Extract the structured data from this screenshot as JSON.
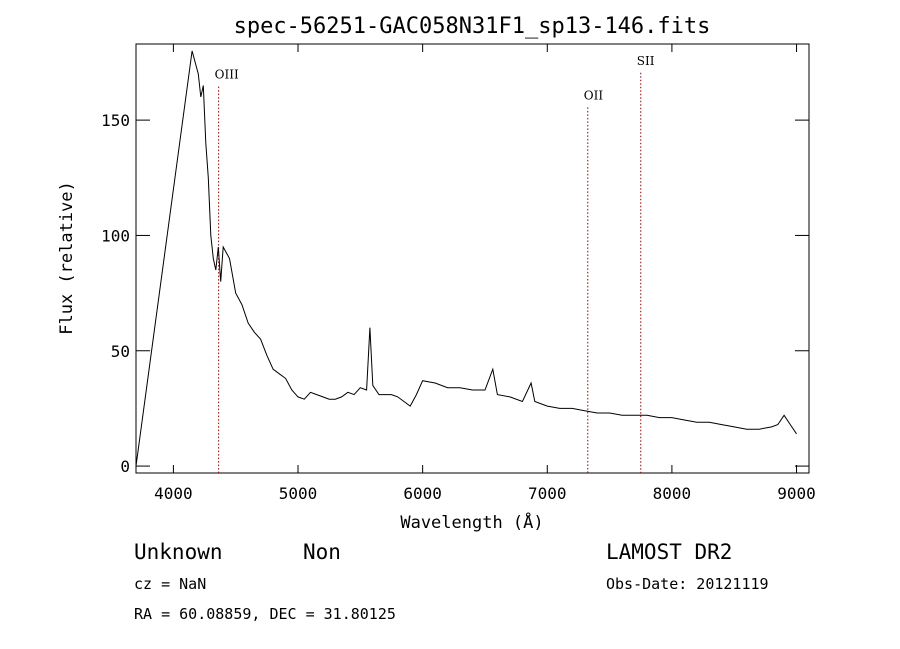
{
  "chart_data": {
    "type": "line",
    "title": "spec-56251-GAC058N31F1_sp13-146.fits",
    "xlabel": "Wavelength (Å)",
    "ylabel": "Flux (relative)",
    "xlim": [
      3700,
      9100
    ],
    "ylim": [
      -3,
      183
    ],
    "xticks": [
      4000,
      5000,
      6000,
      7000,
      8000,
      9000
    ],
    "xtick_labels": [
      "4000",
      "5000",
      "6000",
      "7000",
      "8000",
      "9000"
    ],
    "yticks": [
      0,
      50,
      100,
      150
    ],
    "ytick_labels": [
      "0",
      "50",
      "100",
      "150"
    ],
    "grid": false,
    "series": [
      {
        "x": [
          3700,
          4150,
          4200,
          4220,
          4240,
          4260,
          4280,
          4300,
          4320,
          4340,
          4360,
          4380,
          4400,
          4450,
          4500,
          4550,
          4600,
          4650,
          4700,
          4750,
          4800,
          4850,
          4900,
          4950,
          5000,
          5050,
          5100,
          5150,
          5200,
          5250,
          5300,
          5350,
          5400,
          5450,
          5500,
          5550,
          5577,
          5600,
          5650,
          5700,
          5750,
          5800,
          5850,
          5900,
          5950,
          6000,
          6100,
          6200,
          6300,
          6400,
          6500,
          6563,
          6600,
          6700,
          6800,
          6870,
          6900,
          7000,
          7100,
          7200,
          7300,
          7400,
          7500,
          7600,
          7700,
          7800,
          7900,
          8000,
          8100,
          8200,
          8300,
          8400,
          8500,
          8600,
          8700,
          8800,
          8850,
          8900,
          8950,
          9000
        ],
        "y": [
          0,
          180,
          170,
          160,
          165,
          140,
          125,
          100,
          90,
          85,
          95,
          80,
          95,
          90,
          75,
          70,
          62,
          58,
          55,
          48,
          42,
          40,
          38,
          33,
          30,
          29,
          32,
          31,
          30,
          29,
          29,
          30,
          32,
          31,
          34,
          33,
          60,
          35,
          31,
          31,
          31,
          30,
          28,
          26,
          31,
          37,
          36,
          34,
          34,
          33,
          33,
          42,
          31,
          30,
          28,
          36,
          28,
          26,
          25,
          25,
          24,
          23,
          23,
          22,
          22,
          22,
          21,
          21,
          20,
          19,
          19,
          18,
          17,
          16,
          16,
          17,
          18,
          22,
          18,
          14
        ]
      }
    ],
    "lines": [
      {
        "label": "OIII",
        "x": 4363,
        "label_y": 168
      },
      {
        "label": "OII",
        "x": 7325,
        "label_y": 159
      },
      {
        "label": "SII",
        "x": 7750,
        "label_y": 174
      }
    ]
  },
  "footer": {
    "class_label": "Unknown",
    "subclass_label": "Non",
    "survey": "LAMOST DR2",
    "cz": "cz = NaN",
    "obs_date": "Obs-Date: 20121119",
    "coords": "RA =  60.08859, DEC =  31.80125"
  },
  "colors": {
    "line": "#000000",
    "marker": "#8b0000"
  }
}
